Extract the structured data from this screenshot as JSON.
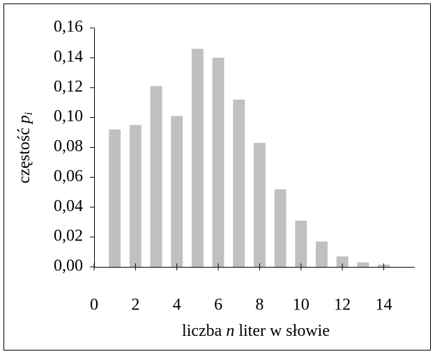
{
  "chart_data": {
    "type": "bar",
    "x_label": {
      "before": "liczba",
      "symbol": "n",
      "after": "liter w słowie"
    },
    "y_label": {
      "text": "częstość",
      "symbol": "p",
      "subscript": "i"
    },
    "x": [
      1,
      2,
      3,
      4,
      5,
      6,
      7,
      8,
      9,
      10,
      11,
      12,
      13,
      14
    ],
    "values": [
      0.092,
      0.095,
      0.121,
      0.101,
      0.146,
      0.14,
      0.112,
      0.083,
      0.052,
      0.031,
      0.017,
      0.007,
      0.003,
      0.0015
    ],
    "color": "#c0c0c0",
    "xlim": [
      0,
      15.5
    ],
    "xticks": [
      0,
      2,
      4,
      6,
      8,
      10,
      12,
      14
    ],
    "ylim": [
      0,
      0.16
    ],
    "yticks": [
      {
        "value": 0,
        "label": "0,00"
      },
      {
        "value": 0.02,
        "label": "0,02"
      },
      {
        "value": 0.04,
        "label": "0,04"
      },
      {
        "value": 0.06,
        "label": "0,06"
      },
      {
        "value": 0.08,
        "label": "0,08"
      },
      {
        "value": 0.1,
        "label": "0,10"
      },
      {
        "value": 0.12,
        "label": "0,12"
      },
      {
        "value": 0.14,
        "label": "0,14"
      },
      {
        "value": 0.16,
        "label": "0,16"
      }
    ]
  }
}
